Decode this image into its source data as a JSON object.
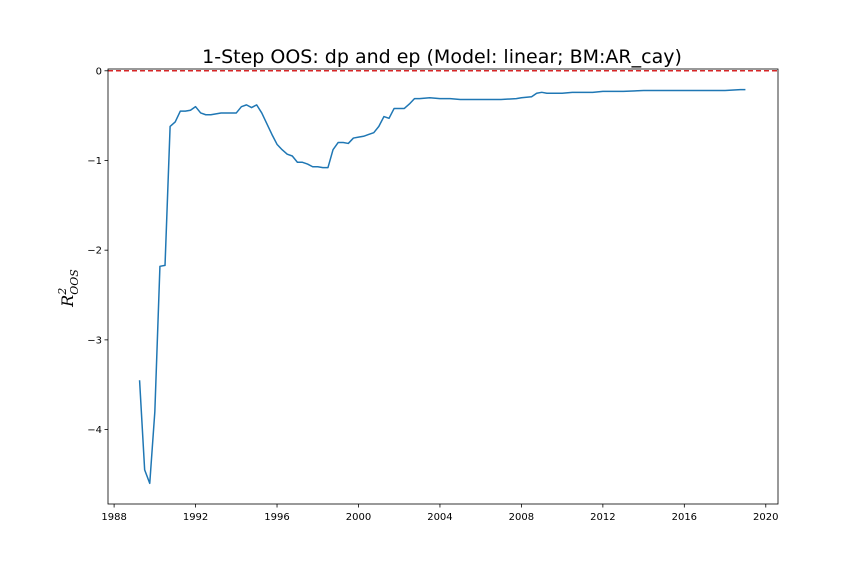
{
  "chart_data": {
    "type": "line",
    "title": "1-Step OOS: dp and ep (Model: linear; BM:AR_cay)",
    "ylabel": {
      "base": "R",
      "sup": "2",
      "sub": "OOS"
    },
    "xlabel": "",
    "xlim": [
      1987.7,
      2020.6
    ],
    "ylim": [
      -4.83,
      0.02
    ],
    "x_ticks": [
      1988,
      1992,
      1996,
      2000,
      2004,
      2008,
      2012,
      2016,
      2020
    ],
    "x_tick_labels": [
      "1988",
      "1992",
      "1996",
      "2000",
      "2004",
      "2008",
      "2012",
      "2016",
      "2020"
    ],
    "y_ticks": [
      0,
      -1,
      -2,
      -3,
      -4
    ],
    "y_tick_labels": [
      "0",
      "−1",
      "−2",
      "−3",
      "−4"
    ],
    "grid": false,
    "reference_line": {
      "y": 0,
      "color": "#d62728",
      "style": "dashed"
    },
    "series": [
      {
        "color": "#1f77b4",
        "x": [
          1989.25,
          1989.5,
          1989.75,
          1990.0,
          1990.25,
          1990.5,
          1990.75,
          1991.0,
          1991.25,
          1991.5,
          1991.75,
          1992.0,
          1992.25,
          1992.5,
          1992.75,
          1993.0,
          1993.25,
          1993.5,
          1993.75,
          1994.0,
          1994.25,
          1994.5,
          1994.75,
          1995.0,
          1995.25,
          1995.5,
          1995.75,
          1996.0,
          1996.25,
          1996.5,
          1996.75,
          1997.0,
          1997.25,
          1997.5,
          1997.75,
          1998.0,
          1998.25,
          1998.5,
          1998.75,
          1999.0,
          1999.25,
          1999.5,
          1999.75,
          2000.0,
          2000.25,
          2000.5,
          2000.75,
          2001.0,
          2001.25,
          2001.5,
          2001.75,
          2002.0,
          2002.25,
          2002.5,
          2002.75,
          2003.0,
          2003.5,
          2004.0,
          2004.5,
          2005.0,
          2005.5,
          2006.0,
          2007.0,
          2007.75,
          2008.0,
          2008.5,
          2008.75,
          2009.0,
          2009.25,
          2009.5,
          2009.75,
          2010.0,
          2010.5,
          2011.0,
          2011.5,
          2012.0,
          2013.0,
          2014.0,
          2015.0,
          2016.0,
          2017.0,
          2018.0,
          2018.75,
          2019.0
        ],
        "y": [
          -3.45,
          -4.45,
          -4.6,
          -3.8,
          -2.18,
          -2.17,
          -0.62,
          -0.57,
          -0.45,
          -0.45,
          -0.44,
          -0.4,
          -0.47,
          -0.49,
          -0.49,
          -0.48,
          -0.47,
          -0.47,
          -0.47,
          -0.47,
          -0.4,
          -0.38,
          -0.41,
          -0.38,
          -0.47,
          -0.59,
          -0.71,
          -0.82,
          -0.88,
          -0.93,
          -0.95,
          -1.02,
          -1.02,
          -1.04,
          -1.07,
          -1.07,
          -1.08,
          -1.08,
          -0.88,
          -0.8,
          -0.8,
          -0.81,
          -0.75,
          -0.74,
          -0.73,
          -0.71,
          -0.69,
          -0.62,
          -0.51,
          -0.53,
          -0.42,
          -0.42,
          -0.42,
          -0.37,
          -0.31,
          -0.31,
          -0.3,
          -0.31,
          -0.31,
          -0.32,
          -0.32,
          -0.32,
          -0.32,
          -0.31,
          -0.3,
          -0.29,
          -0.25,
          -0.24,
          -0.25,
          -0.25,
          -0.25,
          -0.25,
          -0.24,
          -0.24,
          -0.24,
          -0.23,
          -0.23,
          -0.22,
          -0.22,
          -0.22,
          -0.22,
          -0.22,
          -0.21,
          -0.21
        ]
      }
    ]
  }
}
